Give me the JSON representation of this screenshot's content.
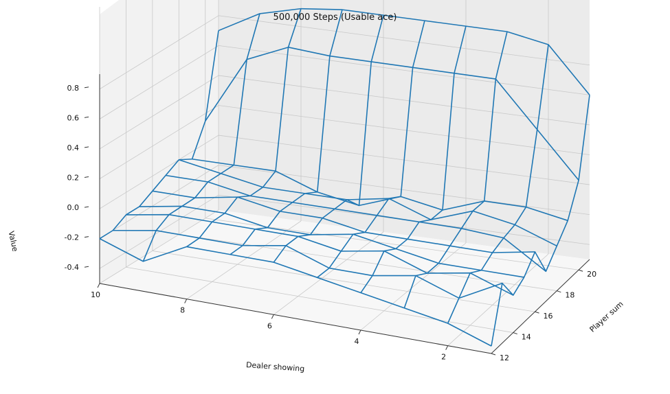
{
  "chart_data": {
    "type": "wireframe",
    "title": "500,000 Steps (Usable ace)",
    "xlabel": "Dealer showing",
    "ylabel": "Player sum",
    "zlabel": "Value",
    "x": [
      1,
      2,
      3,
      4,
      5,
      6,
      7,
      8,
      9,
      10
    ],
    "y": [
      12,
      13,
      14,
      15,
      16,
      17,
      18,
      19,
      20,
      21
    ],
    "xticks": [
      "2",
      "4",
      "6",
      "8",
      "10"
    ],
    "yticks": [
      "12",
      "14",
      "16",
      "18",
      "20"
    ],
    "zticks": [
      "-0.4",
      "-0.2",
      "0.0",
      "0.2",
      "0.4",
      "0.6",
      "0.8"
    ],
    "zlim": [
      -0.5,
      0.9
    ],
    "grid": true,
    "color": "#1f77b4",
    "values": [
      [
        -0.45,
        -0.1,
        -0.25,
        -0.2,
        -0.1,
        -0.3,
        -0.2,
        -0.1,
        0.1,
        0.6
      ],
      [
        -0.35,
        -0.25,
        -0.15,
        -0.2,
        -0.15,
        -0.12,
        -0.1,
        -0.05,
        0.4,
        0.9
      ],
      [
        -0.3,
        -0.15,
        -0.2,
        -0.2,
        -0.15,
        -0.1,
        -0.05,
        -0.05,
        0.7,
        0.95
      ],
      [
        -0.25,
        -0.2,
        -0.1,
        -0.15,
        -0.15,
        -0.1,
        -0.15,
        -0.15,
        0.7,
        0.95
      ],
      [
        -0.2,
        -0.2,
        -0.15,
        -0.1,
        -0.15,
        -0.1,
        -0.05,
        -0.1,
        0.7,
        0.95
      ],
      [
        -0.15,
        -0.1,
        -0.1,
        -0.15,
        -0.1,
        -0.1,
        -0.1,
        -0.2,
        0.7,
        0.95
      ],
      [
        -0.15,
        -0.15,
        -0.1,
        -0.15,
        -0.1,
        -0.1,
        -0.1,
        -0.15,
        0.7,
        0.95
      ],
      [
        -0.15,
        -0.15,
        -0.1,
        -0.1,
        -0.05,
        -0.1,
        -0.1,
        -0.05,
        0.72,
        0.92
      ],
      [
        -0.3,
        -0.15,
        -0.1,
        -0.1,
        -0.1,
        -0.05,
        -0.05,
        -0.05,
        0.6,
        0.85
      ],
      [
        -0.2,
        -0.2,
        -0.15,
        -0.15,
        -0.1,
        -0.05,
        0.0,
        -0.05,
        0.15,
        0.7
      ]
    ]
  }
}
